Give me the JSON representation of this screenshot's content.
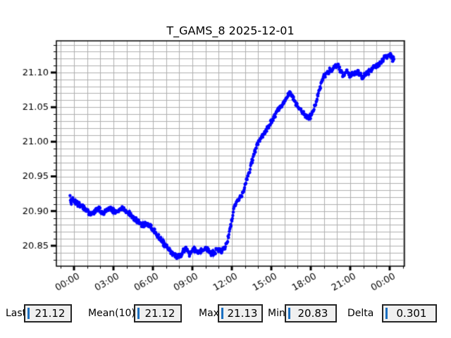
{
  "chart_data": {
    "type": "scatter",
    "title": "T_GAMS_8 2025-12-01",
    "xlabel": "",
    "ylabel": "",
    "x_unit": "time (hours from first midnight)",
    "x_tick_hours": [
      0,
      3,
      6,
      9,
      12,
      15,
      18,
      21,
      24
    ],
    "x_tick_labels": [
      "00:00",
      "03:00",
      "06:00",
      "09:00",
      "12:00",
      "15:00",
      "18:00",
      "21:00",
      "00:00"
    ],
    "x_minor_step_hours": 1,
    "y_tick_values": [
      20.85,
      20.9,
      20.95,
      21.0,
      21.05,
      21.1
    ],
    "y_tick_labels": [
      "20.85",
      "20.90",
      "20.95",
      "21.00",
      "21.05",
      "21.10"
    ],
    "y_minor_step": 0.01,
    "xlim_hours": [
      -1.339,
      25.125
    ],
    "ylim": [
      20.8205,
      21.1457
    ],
    "grid": true,
    "legend": "none",
    "line_color": "#0000ff",
    "grid_color": "#b0b0b0",
    "axis_color": "#000000",
    "series": [
      {
        "name": "T_GAMS_8",
        "points": [
          [
            -0.3,
            20.92
          ],
          [
            -0.22,
            20.907
          ],
          [
            -0.15,
            20.921
          ],
          [
            -0.05,
            20.917
          ],
          [
            0.1,
            20.913
          ],
          [
            0.4,
            20.91
          ],
          [
            0.7,
            20.906
          ],
          [
            1.0,
            20.899
          ],
          [
            1.3,
            20.894
          ],
          [
            1.6,
            20.9
          ],
          [
            1.9,
            20.903
          ],
          [
            2.2,
            20.898
          ],
          [
            2.5,
            20.901
          ],
          [
            2.8,
            20.904
          ],
          [
            3.1,
            20.898
          ],
          [
            3.4,
            20.902
          ],
          [
            3.7,
            20.905
          ],
          [
            4.0,
            20.899
          ],
          [
            4.3,
            20.895
          ],
          [
            4.6,
            20.89
          ],
          [
            4.9,
            20.884
          ],
          [
            5.2,
            20.879
          ],
          [
            5.5,
            20.882
          ],
          [
            5.8,
            20.878
          ],
          [
            6.1,
            20.871
          ],
          [
            6.4,
            20.864
          ],
          [
            6.7,
            20.856
          ],
          [
            7.0,
            20.849
          ],
          [
            7.3,
            20.843
          ],
          [
            7.6,
            20.838
          ],
          [
            7.9,
            20.834
          ],
          [
            8.2,
            20.838
          ],
          [
            8.5,
            20.846
          ],
          [
            8.8,
            20.838
          ],
          [
            9.1,
            20.846
          ],
          [
            9.4,
            20.84
          ],
          [
            9.7,
            20.843
          ],
          [
            10.0,
            20.847
          ],
          [
            10.3,
            20.841
          ],
          [
            10.6,
            20.839
          ],
          [
            10.9,
            20.845
          ],
          [
            11.2,
            20.842
          ],
          [
            11.5,
            20.848
          ],
          [
            11.75,
            20.863
          ],
          [
            11.95,
            20.882
          ],
          [
            12.15,
            20.903
          ],
          [
            12.4,
            20.914
          ],
          [
            12.65,
            20.92
          ],
          [
            12.9,
            20.93
          ],
          [
            13.15,
            20.947
          ],
          [
            13.4,
            20.962
          ],
          [
            13.65,
            20.98
          ],
          [
            13.9,
            20.996
          ],
          [
            14.15,
            21.004
          ],
          [
            14.45,
            21.013
          ],
          [
            14.75,
            21.022
          ],
          [
            15.05,
            21.031
          ],
          [
            15.35,
            21.041
          ],
          [
            15.65,
            21.049
          ],
          [
            15.95,
            21.058
          ],
          [
            16.2,
            21.066
          ],
          [
            16.45,
            21.072
          ],
          [
            16.7,
            21.062
          ],
          [
            17.0,
            21.051
          ],
          [
            17.3,
            21.044
          ],
          [
            17.6,
            21.038
          ],
          [
            17.9,
            21.035
          ],
          [
            18.15,
            21.042
          ],
          [
            18.4,
            21.056
          ],
          [
            18.65,
            21.075
          ],
          [
            18.9,
            21.091
          ],
          [
            19.15,
            21.098
          ],
          [
            19.4,
            21.102
          ],
          [
            19.65,
            21.106
          ],
          [
            19.9,
            21.109
          ],
          [
            20.05,
            21.111
          ],
          [
            20.25,
            21.103
          ],
          [
            20.45,
            21.096
          ],
          [
            20.7,
            21.102
          ],
          [
            21.0,
            21.096
          ],
          [
            21.3,
            21.1
          ],
          [
            21.6,
            21.102
          ],
          [
            21.9,
            21.093
          ],
          [
            22.2,
            21.098
          ],
          [
            22.5,
            21.102
          ],
          [
            22.8,
            21.106
          ],
          [
            23.1,
            21.111
          ],
          [
            23.4,
            21.117
          ],
          [
            23.7,
            21.123
          ],
          [
            23.95,
            21.127
          ],
          [
            24.1,
            21.126
          ],
          [
            24.22,
            21.118
          ],
          [
            24.35,
            21.121
          ]
        ]
      }
    ]
  },
  "stats": {
    "items": [
      {
        "label": "Last",
        "value": "21.12"
      },
      {
        "label": "Mean(10)",
        "value": "21.12"
      },
      {
        "label": "Max",
        "value": "21.13"
      },
      {
        "label": "Min",
        "value": "20.83"
      },
      {
        "label": "Delta",
        "value": "0.301"
      }
    ]
  },
  "colors": {
    "marker": "#0000ff",
    "grid": "#b0b0b0",
    "entry_background": "#f0f0f0",
    "entry_border": "#252525",
    "entry_cursor": "#1a6fc0",
    "background": "#ffffff"
  }
}
